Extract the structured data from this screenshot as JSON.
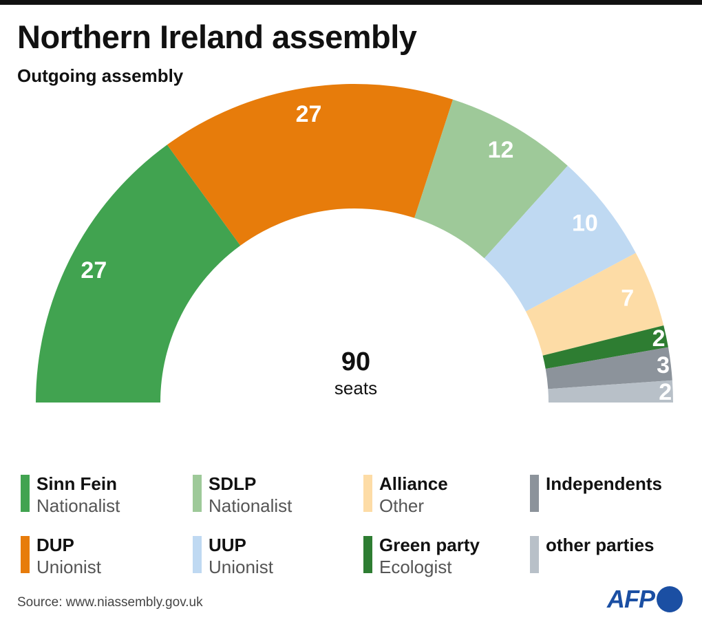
{
  "title": "Northern Ireland assembly",
  "subtitle": "Outgoing assembly",
  "chart_data": {
    "type": "pie",
    "shape": "semicircle-donut",
    "total": 90,
    "total_label": "seats",
    "categories": [
      "Sinn Fein",
      "DUP",
      "SDLP",
      "UUP",
      "Alliance",
      "Green party",
      "Independents",
      "other parties"
    ],
    "values": [
      27,
      27,
      12,
      10,
      7,
      2,
      3,
      2
    ],
    "colors": [
      "#41a350",
      "#e77c0b",
      "#9ec999",
      "#bfd9f2",
      "#fddca6",
      "#2e7d32",
      "#8c939b",
      "#b8c0c8"
    ],
    "legend_placement": "bottom"
  },
  "legend": [
    {
      "name": "Sinn Fein",
      "group": "Nationalist",
      "color": "#41a350"
    },
    {
      "name": "SDLP",
      "group": "Nationalist",
      "color": "#9ec999"
    },
    {
      "name": "Alliance",
      "group": "Other",
      "color": "#fddca6"
    },
    {
      "name": "Independents",
      "group": "",
      "color": "#8c939b"
    },
    {
      "name": "DUP",
      "group": "Unionist",
      "color": "#e77c0b"
    },
    {
      "name": "UUP",
      "group": "Unionist",
      "color": "#bfd9f2"
    },
    {
      "name": "Green party",
      "group": "Ecologist",
      "color": "#2e7d32"
    },
    {
      "name": "other parties",
      "group": "",
      "color": "#b8c0c8"
    }
  ],
  "source": "Source: www.niassembly.gov.uk",
  "logo": "AFP"
}
